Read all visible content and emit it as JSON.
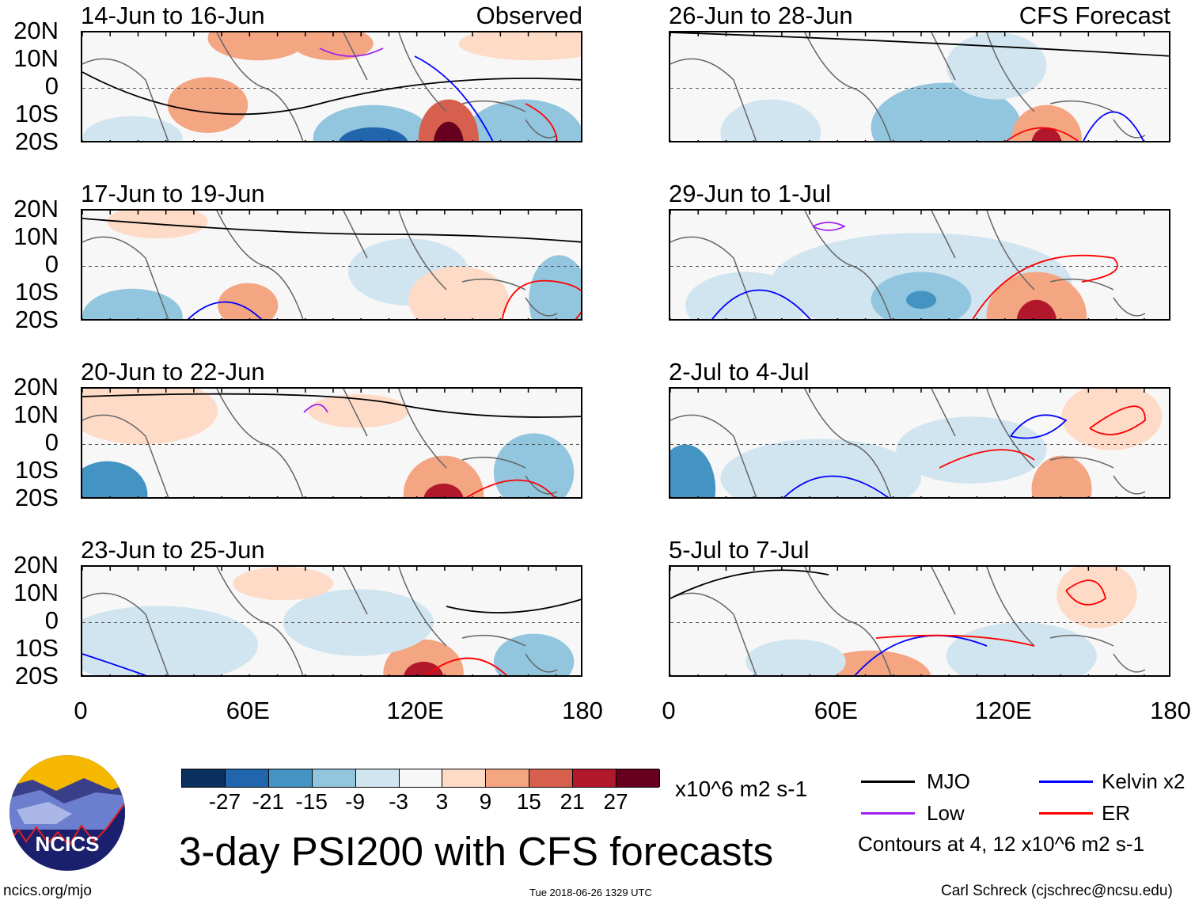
{
  "panels": {
    "left": [
      {
        "title": "14-Jun to 16-Jun",
        "tag": "Observed"
      },
      {
        "title": "17-Jun to 19-Jun"
      },
      {
        "title": "20-Jun to 22-Jun"
      },
      {
        "title": "23-Jun to 25-Jun"
      }
    ],
    "right": [
      {
        "title": "26-Jun to 28-Jun",
        "tag": "CFS Forecast"
      },
      {
        "title": "29-Jun to 1-Jul"
      },
      {
        "title": "2-Jul to 4-Jul"
      },
      {
        "title": "5-Jul to 7-Jul"
      }
    ]
  },
  "lat_labels": [
    "20N",
    "10N",
    "0",
    "10S",
    "20S"
  ],
  "lon_labels": [
    "0",
    "60E",
    "120E",
    "180"
  ],
  "colorbar": {
    "colors": [
      "#0b2f5e",
      "#2166ac",
      "#4393c3",
      "#92c5de",
      "#d1e5f0",
      "#f7f7f7",
      "#fddbc7",
      "#f4a582",
      "#d6604d",
      "#b2182b",
      "#67001f"
    ],
    "labels": [
      "-27",
      "-21",
      "-15",
      "-9",
      "-3",
      "3",
      "9",
      "15",
      "21",
      "27"
    ],
    "units": "x10^6 m2 s-1"
  },
  "legend": {
    "items": [
      {
        "label": "MJO",
        "color": "#000000"
      },
      {
        "label": "Kelvin x2",
        "color": "#0000ff"
      },
      {
        "label": "Low",
        "color": "#a020f0"
      },
      {
        "label": "ER",
        "color": "#ff0000"
      }
    ],
    "note": "Contours at 4, 12 x10^6 m2 s-1"
  },
  "title": "3-day PSI200 with CFS forecasts",
  "logo": {
    "text": "NCICS"
  },
  "footer": {
    "url": "ncics.org/mjo",
    "timestamp": "Tue 2018-06-26 1329 UTC",
    "credit": "Carl Schreck (cjschrec@ncsu.edu)"
  }
}
